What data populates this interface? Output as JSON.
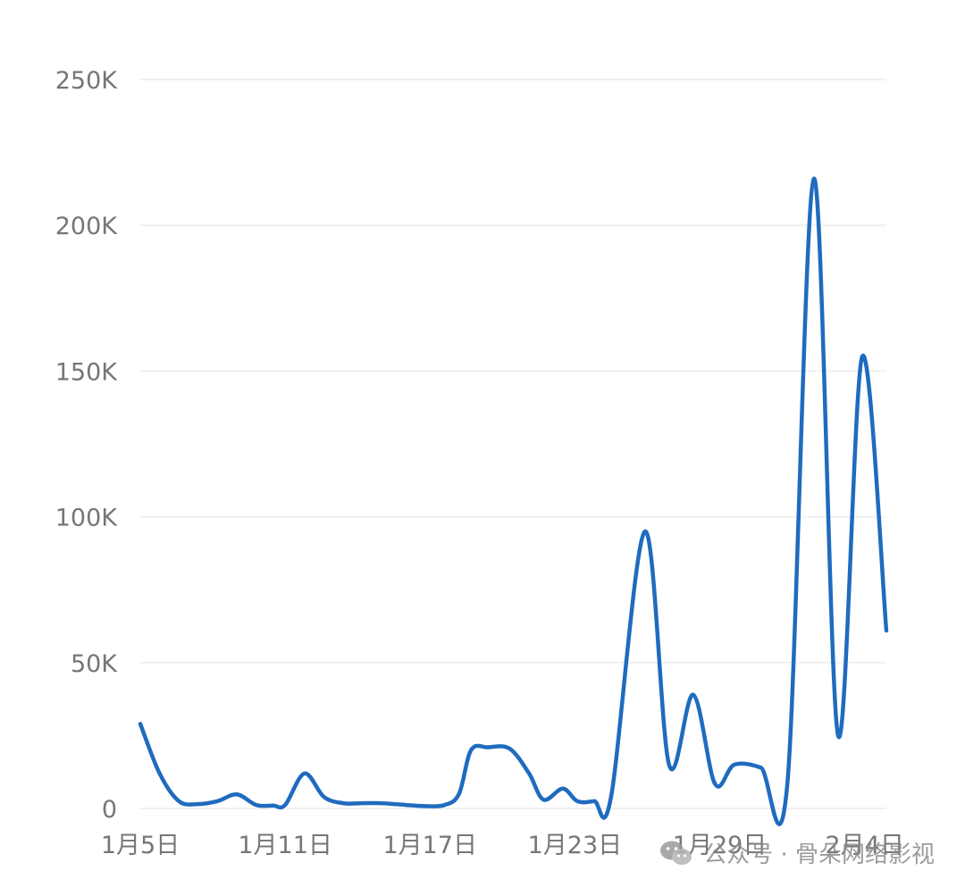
{
  "chart_data": {
    "type": "line",
    "title": "",
    "xlabel": "",
    "ylabel": "",
    "ylim": [
      0,
      250000
    ],
    "y_ticks": [
      0,
      50000,
      100000,
      150000,
      200000,
      250000
    ],
    "y_tick_labels": [
      "0",
      "50K",
      "100K",
      "150K",
      "200K",
      "250K"
    ],
    "x_tick_labels": [
      "1月5日",
      "1月11日",
      "1月17日",
      "1月23日",
      "1月29日",
      "2月4日"
    ],
    "x_tick_days": [
      0,
      6,
      12,
      18,
      24,
      30
    ],
    "grid": true,
    "series": [
      {
        "color": "#1f6bbf",
        "points": [
          [
            0,
            29000
          ],
          [
            0.8,
            12000
          ],
          [
            1.6,
            2500
          ],
          [
            2.4,
            1500
          ],
          [
            3.2,
            2500
          ],
          [
            4.0,
            4800
          ],
          [
            4.8,
            1200
          ],
          [
            5.5,
            1000
          ],
          [
            6.0,
            1200
          ],
          [
            6.8,
            12000
          ],
          [
            7.6,
            4000
          ],
          [
            8.4,
            1800
          ],
          [
            9.2,
            1800
          ],
          [
            10.0,
            1800
          ],
          [
            11.0,
            1200
          ],
          [
            11.8,
            800
          ],
          [
            12.6,
            1200
          ],
          [
            13.2,
            5000
          ],
          [
            13.7,
            20000
          ],
          [
            14.4,
            21000
          ],
          [
            15.3,
            20500
          ],
          [
            16.1,
            12000
          ],
          [
            16.7,
            3000
          ],
          [
            17.5,
            6800
          ],
          [
            18.1,
            2500
          ],
          [
            18.8,
            2500
          ],
          [
            19.5,
            4000
          ],
          [
            20.9,
            95000
          ],
          [
            21.9,
            15000
          ],
          [
            22.9,
            39000
          ],
          [
            23.8,
            8500
          ],
          [
            24.6,
            15000
          ],
          [
            25.7,
            14000
          ],
          [
            26.8,
            8500
          ],
          [
            27.9,
            216000
          ],
          [
            28.9,
            25000
          ],
          [
            29.9,
            155000
          ],
          [
            30.9,
            61000
          ]
        ]
      }
    ]
  },
  "watermark": {
    "text": "公众号 · 骨朵网络影视",
    "icon": "wechat-icon"
  }
}
